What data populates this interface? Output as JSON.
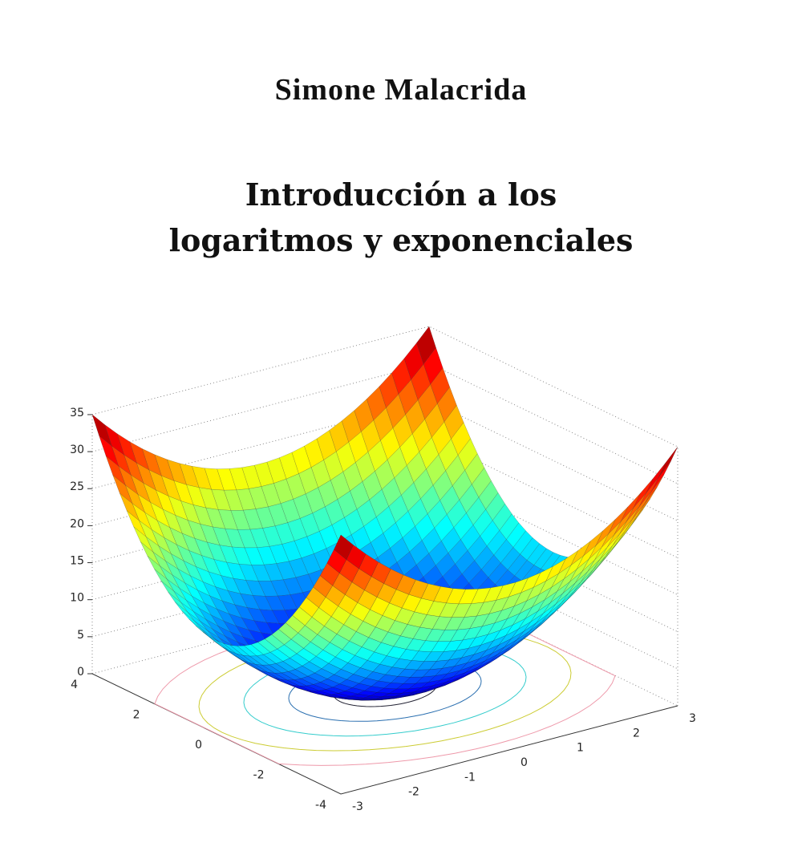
{
  "cover": {
    "author": "Simone Malacrida",
    "title_lines": [
      "Introducción a los",
      "logaritmos y exponenciales"
    ],
    "figure": {
      "z_ticks": [
        0,
        5,
        10,
        15,
        20,
        25,
        30,
        35
      ],
      "x_ticks": [
        4,
        2,
        0,
        -2,
        -4
      ],
      "y_ticks": [
        -3,
        -2,
        -1,
        0,
        1,
        2,
        3
      ]
    }
  }
}
